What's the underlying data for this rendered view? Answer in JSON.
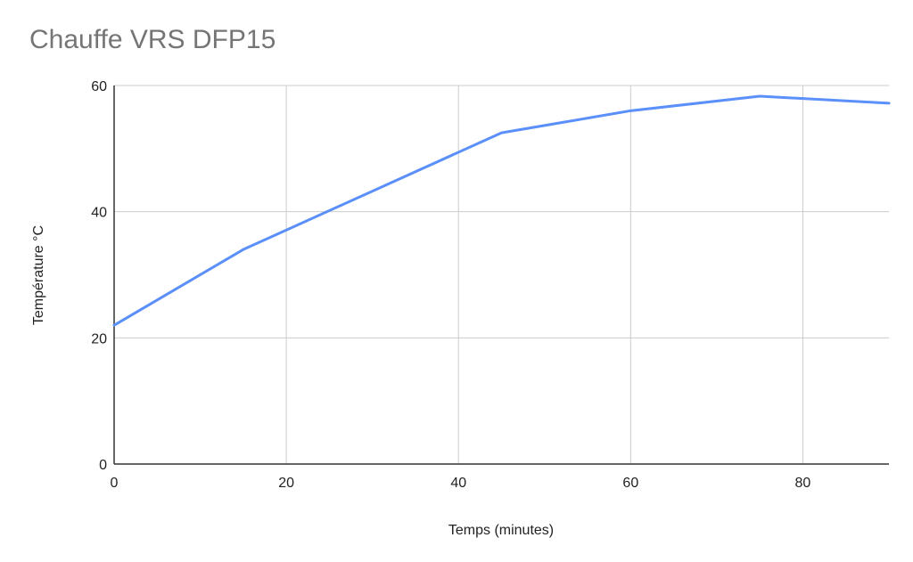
{
  "chart_data": {
    "type": "line",
    "title": "Chauffe VRS DFP15",
    "xlabel": "Temps (minutes)",
    "ylabel": "Température °C",
    "xlim": [
      0,
      90
    ],
    "ylim": [
      0,
      60
    ],
    "xticks": [
      0,
      20,
      40,
      60,
      80
    ],
    "yticks": [
      0,
      20,
      40,
      60
    ],
    "grid": true,
    "legend": "none",
    "series": [
      {
        "color": "#5b8ff9",
        "x": [
          0,
          15,
          45,
          60,
          75,
          90
        ],
        "y": [
          22,
          34,
          52.5,
          56,
          58.3,
          57.2
        ]
      }
    ],
    "colors": {
      "line": "#5b8ff9",
      "grid": "#cccccc",
      "axis": "#333333",
      "title": "#757575"
    }
  }
}
